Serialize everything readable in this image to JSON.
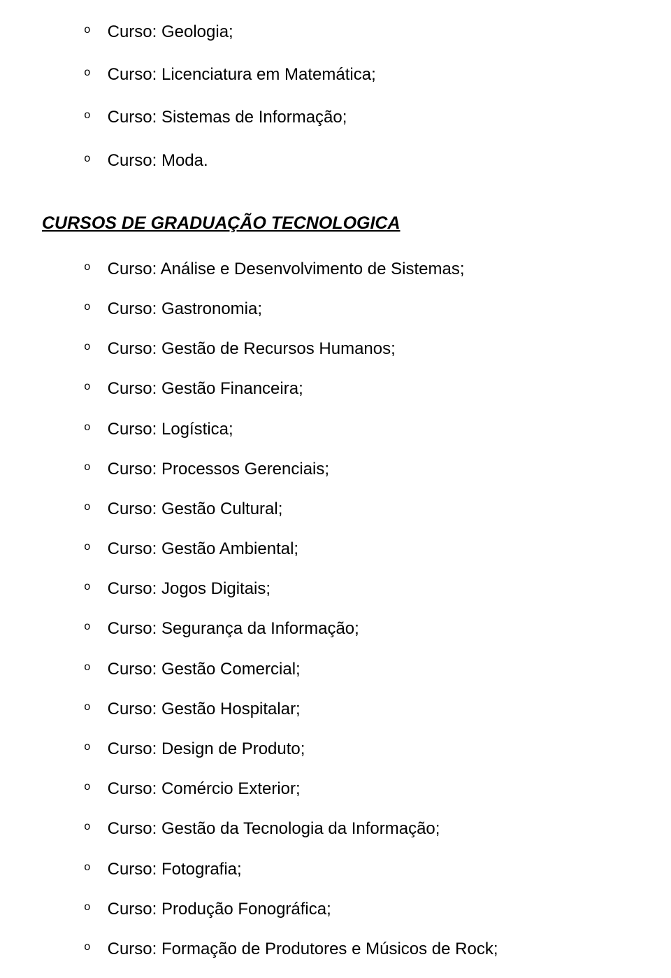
{
  "section1": {
    "items": [
      "Curso: Geologia;",
      "Curso: Licenciatura em Matemática;",
      "Curso: Sistemas de Informação;",
      "Curso: Moda."
    ]
  },
  "section2": {
    "heading": "CURSOS DE GRADUAÇÃO TECNOLOGICA",
    "items": [
      "Curso: Análise e Desenvolvimento de Sistemas;",
      "Curso: Gastronomia;",
      "Curso: Gestão de Recursos Humanos;",
      "Curso: Gestão Financeira;",
      "Curso: Logística;",
      "Curso: Processos Gerenciais;",
      "Curso: Gestão Cultural;",
      "Curso: Gestão Ambiental;",
      "Curso: Jogos Digitais;",
      "Curso: Segurança da Informação;",
      "Curso: Gestão Comercial;",
      "Curso: Gestão Hospitalar;",
      "Curso: Design de Produto;",
      "Curso: Comércio Exterior;",
      "Curso: Gestão da Tecnologia da Informação;",
      "Curso: Fotografia;",
      "Curso: Produção Fonográfica;",
      "Curso: Formação de Produtores e Músicos de Rock;"
    ]
  },
  "bullet_char": "o",
  "colors": {
    "text": "#000000",
    "background": "#ffffff"
  },
  "typography": {
    "body_fontsize": 24,
    "heading_fontsize": 25,
    "bullet_fontsize": 16
  }
}
